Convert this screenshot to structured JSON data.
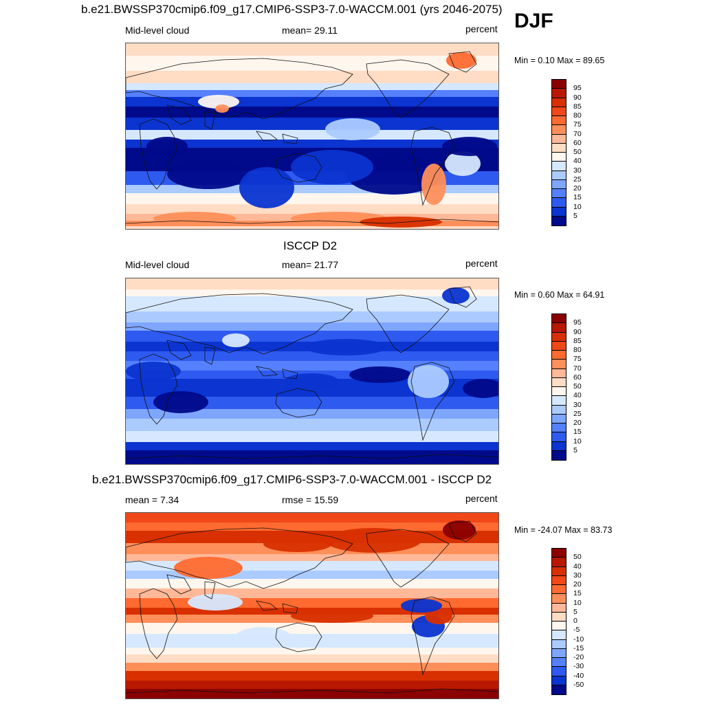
{
  "season": "DJF",
  "panels": [
    {
      "title": "b.e21.BWSSP370cmip6.f09_g17.CMIP6-SSP3-7.0-WACCM.001 (yrs 2046-2075)",
      "left_label": "Mid-level cloud",
      "center_label": "mean=  29.11",
      "right_label": "percent",
      "minmax": "Min =   0.10 Max =  89.65",
      "levels": [
        "95",
        "90",
        "85",
        "80",
        "75",
        "70",
        "60",
        "50",
        "40",
        "30",
        "25",
        "20",
        "15",
        "10",
        "5"
      ],
      "colors": [
        "#8b0000",
        "#b81800",
        "#d83000",
        "#f04818",
        "#ff6a30",
        "#ff8f5a",
        "#ffb898",
        "#ffdcc4",
        "#fff6ee",
        "#d6e8ff",
        "#abcbff",
        "#7ea6ff",
        "#5580ff",
        "#2e5aef",
        "#0b34d0",
        "#000a8a"
      ],
      "pattern": "model"
    },
    {
      "title": "ISCCP D2",
      "left_label": "Mid-level cloud",
      "center_label": "mean=  21.77",
      "right_label": "percent",
      "minmax": "Min =   0.60 Max =  64.91",
      "levels": [
        "95",
        "90",
        "85",
        "80",
        "75",
        "70",
        "60",
        "50",
        "40",
        "30",
        "25",
        "20",
        "15",
        "10",
        "5"
      ],
      "colors": [
        "#8b0000",
        "#b81800",
        "#d83000",
        "#f04818",
        "#ff6a30",
        "#ff8f5a",
        "#ffb898",
        "#ffdcc4",
        "#fff6ee",
        "#d6e8ff",
        "#abcbff",
        "#7ea6ff",
        "#5580ff",
        "#2e5aef",
        "#0b34d0",
        "#000a8a"
      ],
      "pattern": "obs"
    },
    {
      "title": "b.e21.BWSSP370cmip6.f09_g17.CMIP6-SSP3-7.0-WACCM.001 - ISCCP D2",
      "left_label": "mean =   7.34",
      "center_label": "rmse =  15.59",
      "right_label": "percent",
      "minmax": "Min = -24.07 Max =  83.73",
      "levels": [
        "50",
        "40",
        "30",
        "20",
        "15",
        "10",
        "5",
        "0",
        "-5",
        "-10",
        "-15",
        "-20",
        "-30",
        "-40",
        "-50"
      ],
      "colors": [
        "#8b0000",
        "#b81800",
        "#d83000",
        "#f04818",
        "#ff6a30",
        "#ff8f5a",
        "#ffb898",
        "#ffdcc4",
        "#fff6ee",
        "#d6e8ff",
        "#abcbff",
        "#7ea6ff",
        "#5580ff",
        "#2e5aef",
        "#0b34d0",
        "#000a8a"
      ],
      "pattern": "diff"
    }
  ]
}
